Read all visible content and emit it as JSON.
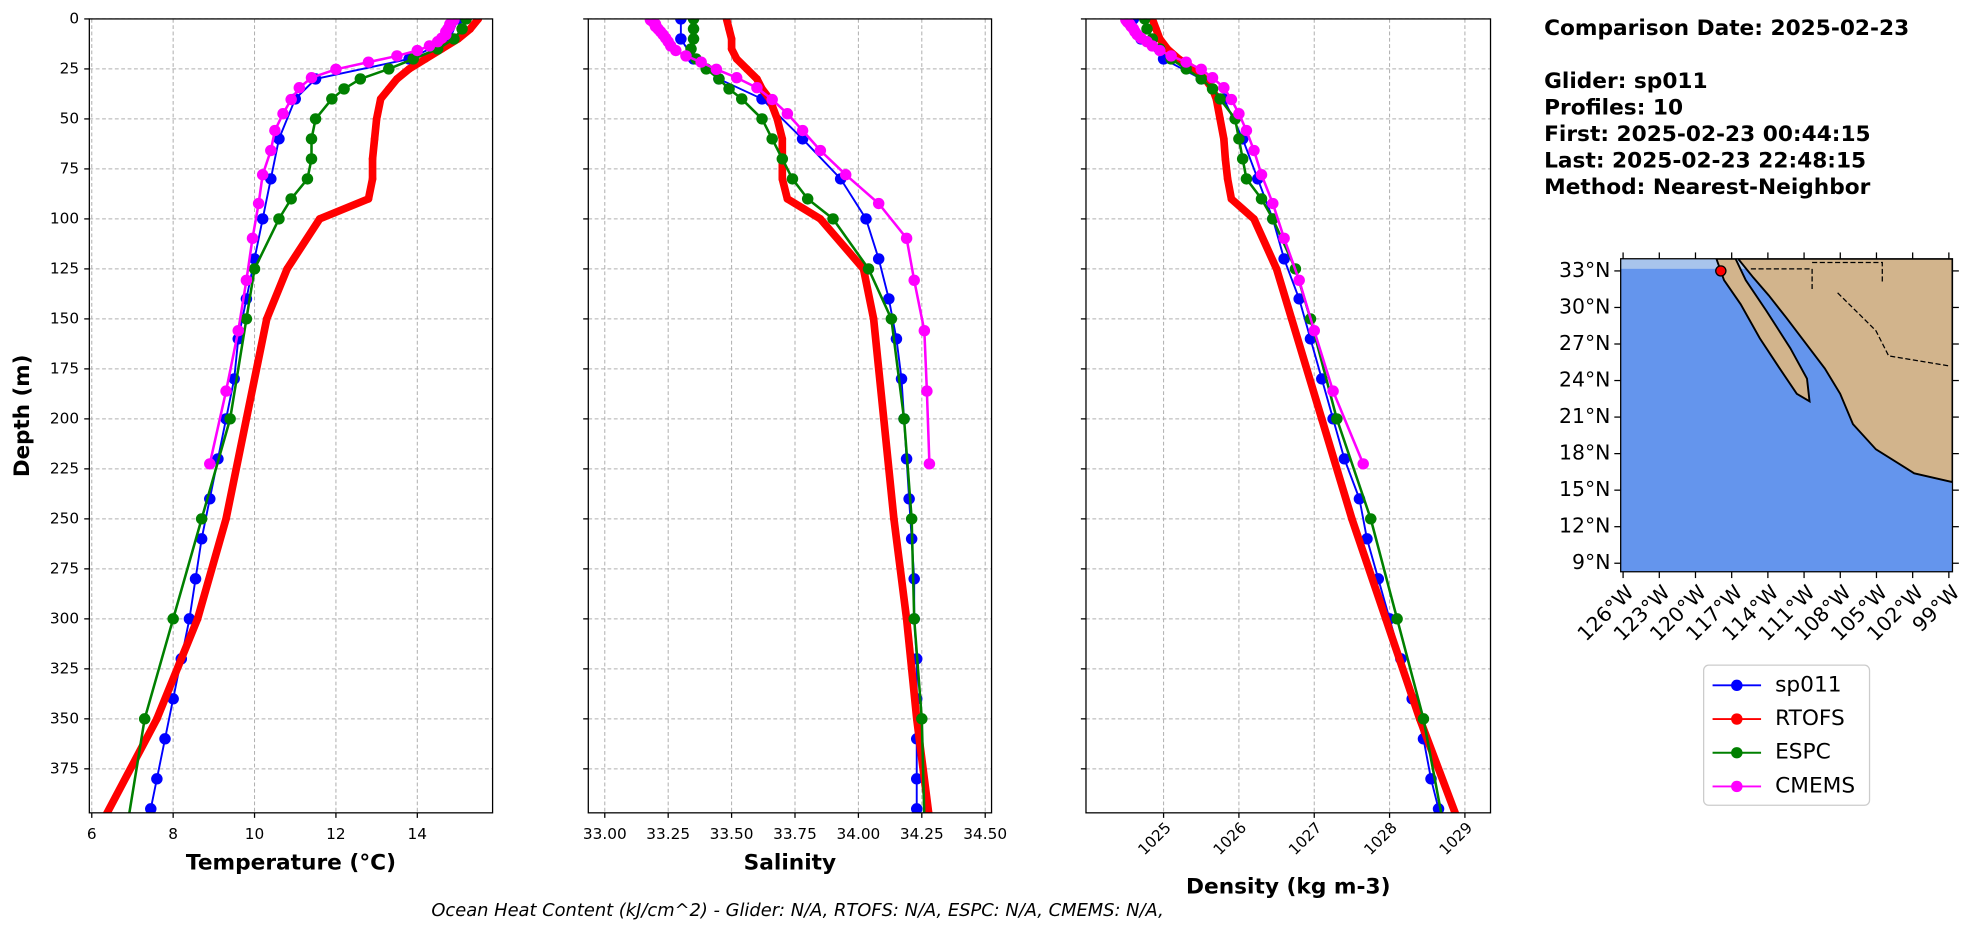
{
  "chart_data": [
    {
      "type": "line",
      "xlabel": "Temperature (°C)",
      "ylabel": "Depth (m)",
      "xlim": [
        5.94,
        15.85
      ],
      "ylim": [
        397,
        0
      ],
      "xticks": [
        6,
        8,
        10,
        12,
        14
      ],
      "yticks": [
        0,
        25,
        50,
        75,
        100,
        125,
        150,
        175,
        200,
        225,
        250,
        275,
        300,
        325,
        350,
        375
      ],
      "ytick_labels": true,
      "xtick_rotation": 0,
      "grid": true,
      "series": [
        {
          "name": "sp011",
          "color": "#0000ff",
          "linewidth": 1.5,
          "y": [
            0,
            10,
            20,
            30,
            40,
            60,
            80,
            100,
            120,
            140,
            160,
            180,
            200,
            220,
            240,
            260,
            280,
            300,
            320,
            340,
            360,
            380,
            395
          ],
          "x": [
            15.0,
            14.8,
            13.8,
            11.5,
            11.0,
            10.6,
            10.4,
            10.2,
            10.0,
            9.8,
            9.6,
            9.5,
            9.3,
            9.1,
            8.9,
            8.7,
            8.55,
            8.4,
            8.2,
            8.0,
            7.8,
            7.6,
            7.45
          ]
        },
        {
          "name": "RTOFS",
          "color": "#ff0000",
          "linewidth": 6,
          "y": [
            0,
            5,
            10,
            15,
            20,
            25,
            30,
            35,
            40,
            50,
            60,
            70,
            80,
            90,
            100,
            125,
            150,
            200,
            250,
            300,
            350,
            400
          ],
          "x": [
            15.5,
            15.3,
            15.0,
            14.6,
            14.2,
            13.8,
            13.5,
            13.3,
            13.1,
            13.0,
            12.95,
            12.9,
            12.9,
            12.8,
            11.6,
            10.8,
            10.3,
            9.8,
            9.3,
            8.6,
            7.6,
            6.3
          ]
        },
        {
          "name": "ESPC",
          "color": "#008000",
          "linewidth": 2,
          "y": [
            0,
            5,
            10,
            15,
            20,
            25,
            30,
            35,
            40,
            50,
            60,
            70,
            80,
            90,
            100,
            125,
            150,
            200,
            250,
            300,
            350,
            400
          ],
          "x": [
            15.2,
            15.1,
            14.9,
            14.5,
            13.9,
            13.3,
            12.6,
            12.2,
            11.9,
            11.5,
            11.4,
            11.4,
            11.3,
            10.9,
            10.6,
            10.0,
            9.8,
            9.4,
            8.7,
            8.0,
            7.3,
            6.9
          ]
        },
        {
          "name": "CMEMS",
          "color": "#ff00ff",
          "linewidth": 2,
          "y": [
            0.5,
            1.5,
            2.6,
            3.8,
            5,
            6.4,
            7.9,
            9.6,
            11.4,
            13.5,
            15.8,
            18.5,
            21.6,
            25.2,
            29.4,
            34.4,
            40.3,
            47.4,
            55.8,
            65.8,
            77.9,
            92.3,
            109.7,
            130.7,
            155.9,
            186.1,
            222.5
          ],
          "x": [
            14.9,
            14.85,
            14.8,
            14.8,
            14.75,
            14.7,
            14.7,
            14.6,
            14.5,
            14.3,
            14.0,
            13.5,
            12.8,
            12.0,
            11.4,
            11.1,
            10.9,
            10.7,
            10.5,
            10.4,
            10.2,
            10.1,
            9.95,
            9.8,
            9.6,
            9.3,
            8.9
          ]
        }
      ]
    },
    {
      "type": "line",
      "xlabel": "Salinity",
      "xlim": [
        32.935,
        34.525
      ],
      "ylim": [
        397,
        0
      ],
      "xticks": [
        {
          "value": 33.0,
          "label": "33.00"
        },
        {
          "value": 33.25,
          "label": "33.25"
        },
        {
          "value": 33.5,
          "label": "33.50"
        },
        {
          "value": 33.75,
          "label": "33.75"
        },
        {
          "value": 34.0,
          "label": "34.00"
        },
        {
          "value": 34.25,
          "label": "34.25"
        },
        {
          "value": 34.5,
          "label": "34.50"
        }
      ],
      "yticks": [
        0,
        25,
        50,
        75,
        100,
        125,
        150,
        175,
        200,
        225,
        250,
        275,
        300,
        325,
        350,
        375
      ],
      "ytick_labels": false,
      "xtick_rotation": 0,
      "grid": true,
      "series": [
        {
          "name": "sp011",
          "color": "#0000ff",
          "linewidth": 1.5,
          "y": [
            0,
            10,
            20,
            30,
            40,
            60,
            80,
            100,
            120,
            140,
            160,
            180,
            200,
            220,
            240,
            260,
            280,
            300,
            320,
            340,
            360,
            380,
            395
          ],
          "x": [
            33.3,
            33.3,
            33.35,
            33.45,
            33.62,
            33.78,
            33.93,
            34.03,
            34.08,
            34.12,
            34.15,
            34.17,
            34.18,
            34.19,
            34.2,
            34.21,
            34.22,
            34.22,
            34.23,
            34.23,
            34.23,
            34.23,
            34.23
          ]
        },
        {
          "name": "RTOFS",
          "color": "#ff0000",
          "linewidth": 6,
          "y": [
            0,
            5,
            10,
            15,
            20,
            25,
            30,
            35,
            40,
            50,
            60,
            70,
            80,
            90,
            100,
            125,
            150,
            200,
            250,
            300,
            350,
            400
          ],
          "x": [
            33.48,
            33.49,
            33.5,
            33.5,
            33.52,
            33.56,
            33.6,
            33.62,
            33.65,
            33.68,
            33.7,
            33.7,
            33.7,
            33.72,
            33.85,
            34.02,
            34.06,
            34.1,
            34.14,
            34.19,
            34.23,
            34.28
          ]
        },
        {
          "name": "ESPC",
          "color": "#008000",
          "linewidth": 2,
          "y": [
            0,
            5,
            10,
            15,
            20,
            25,
            30,
            35,
            40,
            50,
            60,
            70,
            80,
            90,
            100,
            125,
            150,
            200,
            250,
            300,
            350,
            400
          ],
          "x": [
            33.35,
            33.35,
            33.35,
            33.34,
            33.36,
            33.4,
            33.45,
            33.49,
            33.54,
            33.62,
            33.66,
            33.7,
            33.74,
            33.8,
            33.9,
            34.04,
            34.13,
            34.18,
            34.21,
            34.22,
            34.25,
            34.26
          ]
        },
        {
          "name": "CMEMS",
          "color": "#ff00ff",
          "linewidth": 2,
          "y": [
            0.5,
            1.5,
            2.6,
            3.8,
            5,
            6.4,
            7.9,
            9.6,
            11.4,
            13.5,
            15.8,
            18.5,
            21.6,
            25.2,
            29.4,
            34.4,
            40.3,
            47.4,
            55.8,
            65.8,
            77.9,
            92.3,
            109.7,
            130.7,
            155.9,
            186.1,
            222.5
          ],
          "x": [
            33.18,
            33.19,
            33.2,
            33.2,
            33.21,
            33.22,
            33.23,
            33.24,
            33.25,
            33.26,
            33.28,
            33.32,
            33.38,
            33.44,
            33.52,
            33.6,
            33.66,
            33.72,
            33.78,
            33.85,
            33.95,
            34.08,
            34.19,
            34.22,
            34.26,
            34.27,
            34.28
          ]
        }
      ]
    },
    {
      "type": "line",
      "xlabel": "Density (kg m-3)",
      "xlim": [
        1023.97,
        1029.34
      ],
      "ylim": [
        397,
        0
      ],
      "xticks": [
        1025,
        1026,
        1027,
        1028,
        1029
      ],
      "yticks": [
        0,
        25,
        50,
        75,
        100,
        125,
        150,
        175,
        200,
        225,
        250,
        275,
        300,
        325,
        350,
        375
      ],
      "ytick_labels": false,
      "xtick_rotation": 45,
      "grid": true,
      "series": [
        {
          "name": "sp011",
          "color": "#0000ff",
          "linewidth": 1.5,
          "y": [
            0,
            10,
            20,
            30,
            40,
            60,
            80,
            100,
            120,
            140,
            160,
            180,
            200,
            220,
            240,
            260,
            280,
            300,
            320,
            340,
            360,
            380,
            395
          ],
          "x": [
            1024.6,
            1024.7,
            1025.0,
            1025.5,
            1025.8,
            1026.05,
            1026.25,
            1026.45,
            1026.6,
            1026.8,
            1026.95,
            1027.1,
            1027.25,
            1027.4,
            1027.6,
            1027.7,
            1027.85,
            1028.0,
            1028.15,
            1028.3,
            1028.45,
            1028.55,
            1028.65
          ]
        },
        {
          "name": "RTOFS",
          "color": "#ff0000",
          "linewidth": 6,
          "y": [
            0,
            5,
            10,
            15,
            20,
            25,
            30,
            35,
            40,
            50,
            60,
            70,
            80,
            90,
            100,
            125,
            150,
            200,
            250,
            300,
            350,
            400
          ],
          "x": [
            1024.85,
            1024.9,
            1024.95,
            1025.05,
            1025.2,
            1025.4,
            1025.55,
            1025.65,
            1025.7,
            1025.75,
            1025.8,
            1025.82,
            1025.85,
            1025.9,
            1026.2,
            1026.5,
            1026.7,
            1027.1,
            1027.5,
            1027.95,
            1028.4,
            1028.9
          ]
        },
        {
          "name": "ESPC",
          "color": "#008000",
          "linewidth": 2,
          "y": [
            0,
            5,
            10,
            15,
            20,
            25,
            30,
            35,
            40,
            50,
            60,
            70,
            80,
            90,
            100,
            125,
            150,
            200,
            250,
            300,
            350,
            400
          ],
          "x": [
            1024.75,
            1024.78,
            1024.85,
            1024.95,
            1025.1,
            1025.3,
            1025.5,
            1025.65,
            1025.75,
            1025.95,
            1026.0,
            1026.05,
            1026.1,
            1026.3,
            1026.45,
            1026.75,
            1026.95,
            1027.3,
            1027.75,
            1028.1,
            1028.45,
            1028.7
          ]
        },
        {
          "name": "CMEMS",
          "color": "#ff00ff",
          "linewidth": 2,
          "y": [
            0.5,
            1.5,
            2.6,
            3.8,
            5,
            6.4,
            7.9,
            9.6,
            11.4,
            13.5,
            15.8,
            18.5,
            21.6,
            25.2,
            29.4,
            34.4,
            40.3,
            47.4,
            55.8,
            65.8,
            77.9,
            92.3,
            109.7,
            130.7,
            155.9,
            186.1,
            222.5
          ],
          "x": [
            1024.5,
            1024.52,
            1024.55,
            1024.57,
            1024.6,
            1024.62,
            1024.65,
            1024.7,
            1024.78,
            1024.85,
            1024.95,
            1025.1,
            1025.3,
            1025.5,
            1025.65,
            1025.8,
            1025.9,
            1026.0,
            1026.1,
            1026.2,
            1026.3,
            1026.45,
            1026.6,
            1026.8,
            1027.0,
            1027.25,
            1027.65
          ]
        }
      ]
    },
    {
      "type": "map",
      "xlim": [
        -126.2,
        -98.7
      ],
      "ylim": [
        8.3,
        34.0
      ],
      "xticks": [
        {
          "value": -126,
          "label": "126°W"
        },
        {
          "value": -123,
          "label": "123°W"
        },
        {
          "value": -120,
          "label": "120°W"
        },
        {
          "value": -117,
          "label": "117°W"
        },
        {
          "value": -114,
          "label": "114°W"
        },
        {
          "value": -111,
          "label": "111°W"
        },
        {
          "value": -108,
          "label": "108°W"
        },
        {
          "value": -105,
          "label": "105°W"
        },
        {
          "value": -102,
          "label": "102°W"
        },
        {
          "value": -99,
          "label": "99°W"
        }
      ],
      "yticks": [
        {
          "value": 33,
          "label": "33°N"
        },
        {
          "value": 30,
          "label": "30°N"
        },
        {
          "value": 27,
          "label": "27°N"
        },
        {
          "value": 24,
          "label": "24°N"
        },
        {
          "value": 21,
          "label": "21°N"
        },
        {
          "value": 18,
          "label": "18°N"
        },
        {
          "value": 15,
          "label": "15°N"
        },
        {
          "value": 12,
          "label": "12°N"
        },
        {
          "value": 9,
          "label": "9°N"
        }
      ],
      "point": {
        "x": -117.9,
        "y": 33.0,
        "color": "#ff0000"
      }
    }
  ],
  "info": {
    "lines": [
      "Comparison Date: 2025-02-23",
      "Glider: sp011",
      "Profiles: 10",
      "First: 2025-02-23 00:44:15",
      "Last: 2025-02-23 22:48:15",
      "Method: Nearest-Neighbor"
    ]
  },
  "footer": "Ocean Heat Content (kJ/cm^2) - Glider: N/A,  RTOFS: N/A,  ESPC: N/A,  CMEMS: N/A,"
}
